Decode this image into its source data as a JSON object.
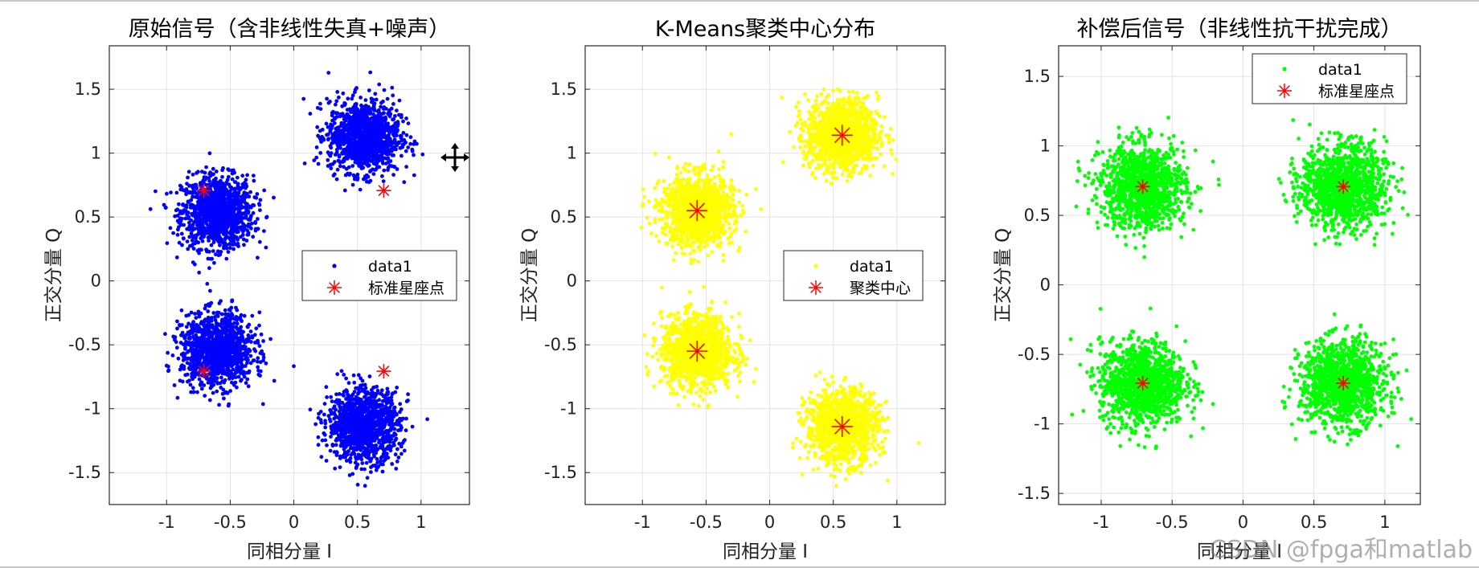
{
  "watermark": "CSDN @fpga和matlab",
  "chart_data": [
    {
      "type": "scatter",
      "title": "原始信号（含非线性失真+噪声）",
      "xlabel": "同相分量 I",
      "ylabel": "正交分量 Q",
      "xlim": [
        -1.45,
        1.38
      ],
      "ylim": [
        -1.75,
        1.84
      ],
      "xticks": [
        -1,
        -0.5,
        0,
        0.5,
        1
      ],
      "yticks": [
        -1.5,
        -1,
        -0.5,
        0,
        0.5,
        1,
        1.5
      ],
      "xtick_labels": [
        "-1",
        "-0.5",
        "0",
        "0.5",
        "1"
      ],
      "ytick_labels": [
        "-1.5",
        "-1",
        "-0.5",
        "0",
        "0.5",
        "1",
        "1.5"
      ],
      "grid": true,
      "series": [
        {
          "name": "data1",
          "marker": "dot",
          "color": "#0000ff",
          "clusters": [
            {
              "center": [
                -0.6,
                0.54
              ],
              "spread": 0.14,
              "count": 1200
            },
            {
              "center": [
                0.55,
                1.13
              ],
              "spread": 0.14,
              "count": 1200
            },
            {
              "center": [
                -0.6,
                -0.54
              ],
              "spread": 0.14,
              "count": 1200
            },
            {
              "center": [
                0.55,
                -1.13
              ],
              "spread": 0.14,
              "count": 1200
            }
          ]
        },
        {
          "name": "标准星座点",
          "marker": "star",
          "color": "#ff0000",
          "points": [
            [
              -0.707,
              0.707
            ],
            [
              0.707,
              0.707
            ],
            [
              -0.707,
              -0.707
            ],
            [
              0.707,
              -0.707
            ]
          ]
        }
      ],
      "legend": {
        "entries": [
          "data1",
          "标准星座点"
        ],
        "location": "east"
      }
    },
    {
      "type": "scatter",
      "title": "K-Means聚类中心分布",
      "xlabel": "同相分量 I",
      "ylabel": "正交分量 Q",
      "xlim": [
        -1.45,
        1.38
      ],
      "ylim": [
        -1.75,
        1.84
      ],
      "xticks": [
        -1,
        -0.5,
        0,
        0.5,
        1
      ],
      "yticks": [
        -1.5,
        -1,
        -0.5,
        0,
        0.5,
        1,
        1.5
      ],
      "xtick_labels": [
        "-1",
        "-0.5",
        "0",
        "0.5",
        "1"
      ],
      "ytick_labels": [
        "-1.5",
        "-1",
        "-0.5",
        "0",
        "0.5",
        "1",
        "1.5"
      ],
      "grid": true,
      "series": [
        {
          "name": "data1",
          "marker": "dot",
          "color": "#ffff00",
          "clusters": [
            {
              "center": [
                -0.57,
                0.55
              ],
              "spread": 0.14,
              "count": 1200
            },
            {
              "center": [
                0.57,
                1.14
              ],
              "spread": 0.14,
              "count": 1200
            },
            {
              "center": [
                -0.57,
                -0.55
              ],
              "spread": 0.14,
              "count": 1200
            },
            {
              "center": [
                0.57,
                -1.14
              ],
              "spread": 0.14,
              "count": 1200
            }
          ]
        },
        {
          "name": "聚类中心",
          "marker": "star",
          "color": "#ff0000",
          "points": [
            [
              -0.57,
              0.55
            ],
            [
              0.57,
              1.14
            ],
            [
              -0.57,
              -0.55
            ],
            [
              0.57,
              -1.14
            ]
          ]
        }
      ],
      "legend": {
        "entries": [
          "data1",
          "聚类中心"
        ],
        "location": "east"
      }
    },
    {
      "type": "scatter",
      "title": "补偿后信号（非线性抗干扰完成）",
      "xlabel": "同相分量 I",
      "ylabel": "正交分量 Q",
      "xlim": [
        -1.3,
        1.25
      ],
      "ylim": [
        -1.58,
        1.72
      ],
      "xticks": [
        -1,
        -0.5,
        0,
        0.5,
        1
      ],
      "yticks": [
        -1.5,
        -1,
        -0.5,
        0,
        0.5,
        1,
        1.5
      ],
      "xtick_labels": [
        "-1",
        "-0.5",
        "0",
        "0.5",
        "1"
      ],
      "ytick_labels": [
        "-1.5",
        "-1",
        "-0.5",
        "0",
        "0.5",
        "1",
        "1.5"
      ],
      "grid": true,
      "series": [
        {
          "name": "data1",
          "marker": "dot",
          "color": "#00ff00",
          "clusters": [
            {
              "center": [
                -0.707,
                0.707
              ],
              "spread": 0.15,
              "count": 1200
            },
            {
              "center": [
                0.707,
                0.707
              ],
              "spread": 0.15,
              "count": 1200
            },
            {
              "center": [
                -0.707,
                -0.707
              ],
              "spread": 0.15,
              "count": 1200
            },
            {
              "center": [
                0.707,
                -0.707
              ],
              "spread": 0.15,
              "count": 1200
            }
          ]
        },
        {
          "name": "标准星座点",
          "marker": "star",
          "color": "#ff0000",
          "points": [
            [
              -0.707,
              0.707
            ],
            [
              0.707,
              0.707
            ],
            [
              -0.707,
              -0.707
            ],
            [
              0.707,
              -0.707
            ]
          ]
        }
      ],
      "legend": {
        "entries": [
          "data1",
          "标准星座点"
        ],
        "location": "northeast"
      }
    }
  ]
}
